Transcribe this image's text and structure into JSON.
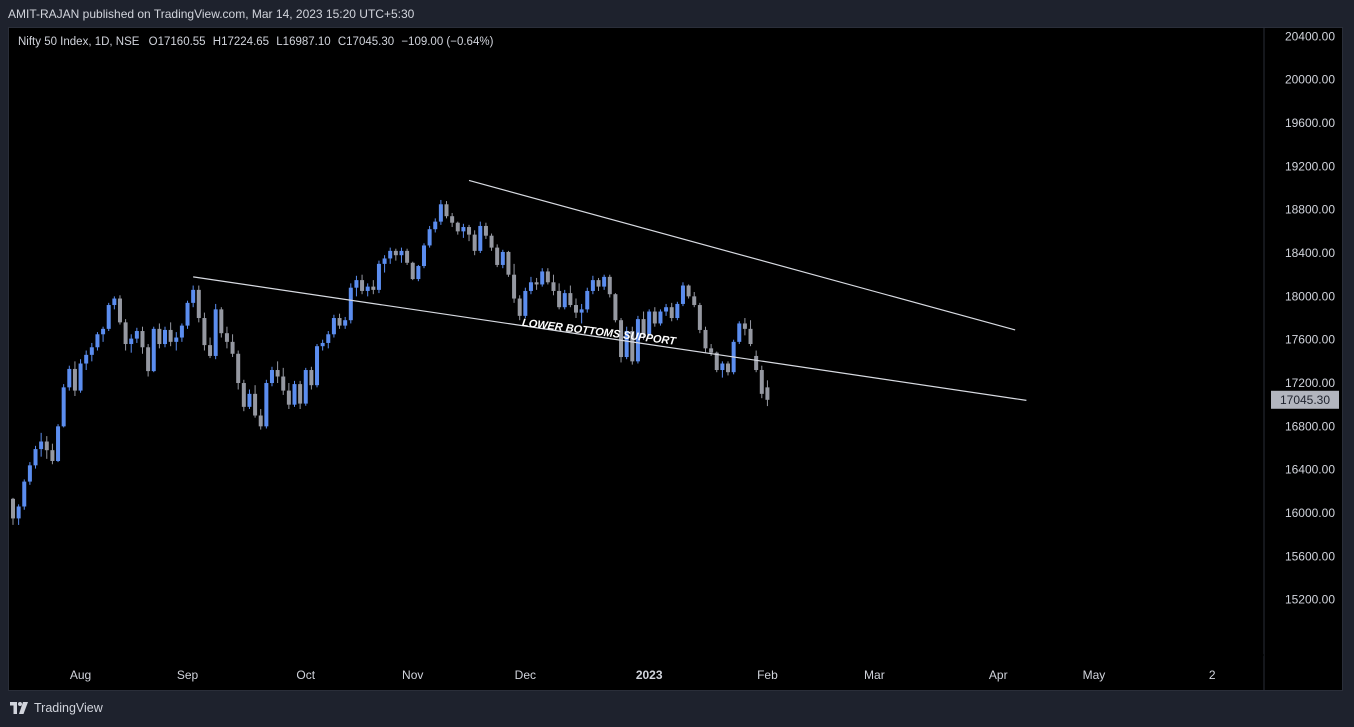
{
  "publisher_line": "AMIT-RAJAN published on TradingView.com, Mar 14, 2023 15:20 UTC+5:30",
  "footer": {
    "brand": "TradingView",
    "logo_icon": "tradingview-logo-icon"
  },
  "legend": {
    "symbol": "Nifty 50 Index, 1D, NSE",
    "open_label": "O",
    "open": "17160.55",
    "high_label": "H",
    "high": "17224.65",
    "low_label": "L",
    "low": "16987.10",
    "close_label": "C",
    "close": "17045.30",
    "change": "−109.00 (−0.64%)"
  },
  "colors": {
    "up": "#5b8def",
    "down": "#9598a1",
    "background": "#000000",
    "trendline": "#d8dbe2",
    "price_tag": "#b2b5be"
  },
  "chart_data": {
    "type": "candlestick",
    "title": "Nifty 50 Index, 1D, NSE",
    "ylim": [
      14800,
      20600
    ],
    "xlim": [
      0,
      215
    ],
    "y_ticks": [
      "15200.00",
      "15600.00",
      "16000.00",
      "16400.00",
      "16800.00",
      "17200.00",
      "17600.00",
      "18000.00",
      "18400.00",
      "18800.00",
      "19200.00",
      "19600.00",
      "20000.00",
      "20400.00"
    ],
    "x_ticks": [
      {
        "label": "Aug",
        "x": 12
      },
      {
        "label": "Sep",
        "x": 31
      },
      {
        "label": "Oct",
        "x": 52
      },
      {
        "label": "Nov",
        "x": 71
      },
      {
        "label": "Dec",
        "x": 91
      },
      {
        "label": "2023",
        "x": 113,
        "bold": true
      },
      {
        "label": "Feb",
        "x": 134
      },
      {
        "label": "Mar",
        "x": 153
      },
      {
        "label": "Apr",
        "x": 175
      },
      {
        "label": "May",
        "x": 192
      },
      {
        "label": "2⁠",
        "x": 213
      }
    ],
    "last_price_label": "17045.30",
    "last_price": 17045.3,
    "trendlines": [
      {
        "name": "upper-resistance",
        "x1": 81,
        "y1": 19070,
        "x2": 178,
        "y2": 17690
      },
      {
        "name": "lower-bottoms-support",
        "x1": 32,
        "y1": 18180,
        "x2": 180,
        "y2": 17040
      }
    ],
    "annotations": [
      {
        "text": "LOWER BOTTOMS SUPPORT",
        "x": 104,
        "y": 17640,
        "angle": 7
      }
    ],
    "ohlc": [
      [
        16131,
        16140,
        15890,
        15950
      ],
      [
        15950,
        16080,
        15890,
        16060
      ],
      [
        16060,
        16310,
        16030,
        16290
      ],
      [
        16290,
        16470,
        16260,
        16440
      ],
      [
        16440,
        16620,
        16410,
        16590
      ],
      [
        16590,
        16740,
        16520,
        16660
      ],
      [
        16660,
        16710,
        16500,
        16580
      ],
      [
        16580,
        16640,
        16450,
        16480
      ],
      [
        16480,
        16820,
        16470,
        16800
      ],
      [
        16800,
        17190,
        16790,
        17160
      ],
      [
        17160,
        17360,
        17130,
        17330
      ],
      [
        17330,
        17400,
        17080,
        17130
      ],
      [
        17130,
        17420,
        17110,
        17380
      ],
      [
        17380,
        17500,
        17320,
        17460
      ],
      [
        17460,
        17570,
        17400,
        17530
      ],
      [
        17530,
        17670,
        17500,
        17650
      ],
      [
        17650,
        17720,
        17580,
        17700
      ],
      [
        17700,
        17940,
        17680,
        17920
      ],
      [
        17920,
        18000,
        17880,
        17980
      ],
      [
        17980,
        18010,
        17740,
        17760
      ],
      [
        17760,
        17790,
        17500,
        17560
      ],
      [
        17560,
        17650,
        17480,
        17610
      ],
      [
        17610,
        17710,
        17570,
        17680
      ],
      [
        17680,
        17720,
        17470,
        17530
      ],
      [
        17530,
        17560,
        17260,
        17310
      ],
      [
        17310,
        17720,
        17300,
        17700
      ],
      [
        17700,
        17750,
        17520,
        17560
      ],
      [
        17560,
        17720,
        17530,
        17690
      ],
      [
        17690,
        17760,
        17540,
        17580
      ],
      [
        17580,
        17670,
        17500,
        17620
      ],
      [
        17620,
        17750,
        17580,
        17730
      ],
      [
        17730,
        17960,
        17700,
        17940
      ],
      [
        17940,
        18100,
        17900,
        18060
      ],
      [
        18060,
        18100,
        17760,
        17800
      ],
      [
        17800,
        17850,
        17500,
        17550
      ],
      [
        17550,
        17620,
        17430,
        17450
      ],
      [
        17450,
        17930,
        17420,
        17880
      ],
      [
        17880,
        17900,
        17620,
        17660
      ],
      [
        17660,
        17720,
        17520,
        17580
      ],
      [
        17580,
        17650,
        17440,
        17470
      ],
      [
        17470,
        17500,
        17140,
        17200
      ],
      [
        17200,
        17230,
        16940,
        16980
      ],
      [
        16980,
        17140,
        16960,
        17100
      ],
      [
        17100,
        17180,
        16880,
        16900
      ],
      [
        16900,
        16960,
        16770,
        16800
      ],
      [
        16800,
        17230,
        16780,
        17200
      ],
      [
        17200,
        17350,
        17170,
        17320
      ],
      [
        17320,
        17400,
        17200,
        17260
      ],
      [
        17260,
        17340,
        17090,
        17130
      ],
      [
        17130,
        17200,
        16960,
        17000
      ],
      [
        17000,
        17220,
        16980,
        17190
      ],
      [
        17190,
        17220,
        16960,
        17010
      ],
      [
        17010,
        17340,
        16990,
        17320
      ],
      [
        17320,
        17350,
        17140,
        17180
      ],
      [
        17180,
        17560,
        17160,
        17540
      ],
      [
        17540,
        17600,
        17500,
        17570
      ],
      [
        17570,
        17680,
        17520,
        17650
      ],
      [
        17650,
        17830,
        17620,
        17800
      ],
      [
        17800,
        17840,
        17700,
        17730
      ],
      [
        17730,
        17810,
        17700,
        17780
      ],
      [
        17780,
        18120,
        17750,
        18080
      ],
      [
        18080,
        18190,
        18000,
        18150
      ],
      [
        18150,
        18200,
        18020,
        18050
      ],
      [
        18050,
        18120,
        18000,
        18090
      ],
      [
        18090,
        18150,
        18020,
        18060
      ],
      [
        18060,
        18330,
        18030,
        18300
      ],
      [
        18300,
        18380,
        18220,
        18350
      ],
      [
        18350,
        18450,
        18300,
        18420
      ],
      [
        18420,
        18440,
        18330,
        18380
      ],
      [
        18380,
        18450,
        18310,
        18420
      ],
      [
        18420,
        18440,
        18290,
        18310
      ],
      [
        18310,
        18320,
        18150,
        18160
      ],
      [
        18160,
        18290,
        18140,
        18280
      ],
      [
        18280,
        18490,
        18260,
        18470
      ],
      [
        18470,
        18650,
        18450,
        18620
      ],
      [
        18620,
        18720,
        18590,
        18690
      ],
      [
        18690,
        18890,
        18660,
        18850
      ],
      [
        18850,
        18880,
        18720,
        18740
      ],
      [
        18740,
        18770,
        18640,
        18680
      ],
      [
        18680,
        18690,
        18570,
        18600
      ],
      [
        18600,
        18670,
        18540,
        18640
      ],
      [
        18640,
        18660,
        18510,
        18570
      ],
      [
        18570,
        18610,
        18380,
        18420
      ],
      [
        18420,
        18690,
        18400,
        18650
      ],
      [
        18650,
        18680,
        18530,
        18560
      ],
      [
        18560,
        18580,
        18420,
        18450
      ],
      [
        18450,
        18480,
        18270,
        18290
      ],
      [
        18290,
        18430,
        18260,
        18410
      ],
      [
        18410,
        18420,
        18180,
        18200
      ],
      [
        18200,
        18300,
        17940,
        17980
      ],
      [
        17980,
        18010,
        17780,
        17820
      ],
      [
        17820,
        18080,
        17800,
        18050
      ],
      [
        18050,
        18180,
        18020,
        18130
      ],
      [
        18130,
        18170,
        18060,
        18110
      ],
      [
        18110,
        18260,
        18090,
        18230
      ],
      [
        18230,
        18260,
        18110,
        18130
      ],
      [
        18130,
        18200,
        18010,
        18050
      ],
      [
        18050,
        18120,
        17880,
        17900
      ],
      [
        17900,
        18060,
        17880,
        18030
      ],
      [
        18030,
        18100,
        17900,
        17920
      ],
      [
        17920,
        17980,
        17800,
        17850
      ],
      [
        17850,
        17930,
        17750,
        17880
      ],
      [
        17880,
        18080,
        17850,
        18050
      ],
      [
        18050,
        18190,
        18020,
        18150
      ],
      [
        18150,
        18170,
        18050,
        18090
      ],
      [
        18090,
        18200,
        18060,
        18180
      ],
      [
        18180,
        18200,
        17990,
        18020
      ],
      [
        18020,
        18030,
        17760,
        17780
      ],
      [
        17780,
        17800,
        17390,
        17440
      ],
      [
        17440,
        17720,
        17420,
        17680
      ],
      [
        17680,
        17720,
        17370,
        17400
      ],
      [
        17400,
        17820,
        17380,
        17790
      ],
      [
        17790,
        17860,
        17600,
        17650
      ],
      [
        17650,
        17880,
        17630,
        17860
      ],
      [
        17860,
        17900,
        17720,
        17750
      ],
      [
        17750,
        17880,
        17730,
        17860
      ],
      [
        17860,
        17930,
        17820,
        17900
      ],
      [
        17900,
        17940,
        17770,
        17800
      ],
      [
        17800,
        17950,
        17780,
        17930
      ],
      [
        17930,
        18130,
        17910,
        18100
      ],
      [
        18100,
        18110,
        17980,
        18000
      ],
      [
        18000,
        18040,
        17900,
        17920
      ],
      [
        17920,
        17940,
        17660,
        17690
      ],
      [
        17690,
        17720,
        17480,
        17520
      ],
      [
        17520,
        17560,
        17450,
        17480
      ],
      [
        17480,
        17490,
        17300,
        17320
      ],
      [
        17320,
        17400,
        17250,
        17380
      ],
      [
        17380,
        17400,
        17270,
        17300
      ],
      [
        17300,
        17600,
        17280,
        17580
      ],
      [
        17580,
        17770,
        17560,
        17750
      ],
      [
        17750,
        17800,
        17640,
        17700
      ],
      [
        17700,
        17780,
        17540,
        17560
      ],
      [
        17450,
        17500,
        17300,
        17320
      ],
      [
        17320,
        17360,
        17060,
        17100
      ],
      [
        17160,
        17225,
        16987,
        17045
      ]
    ]
  }
}
